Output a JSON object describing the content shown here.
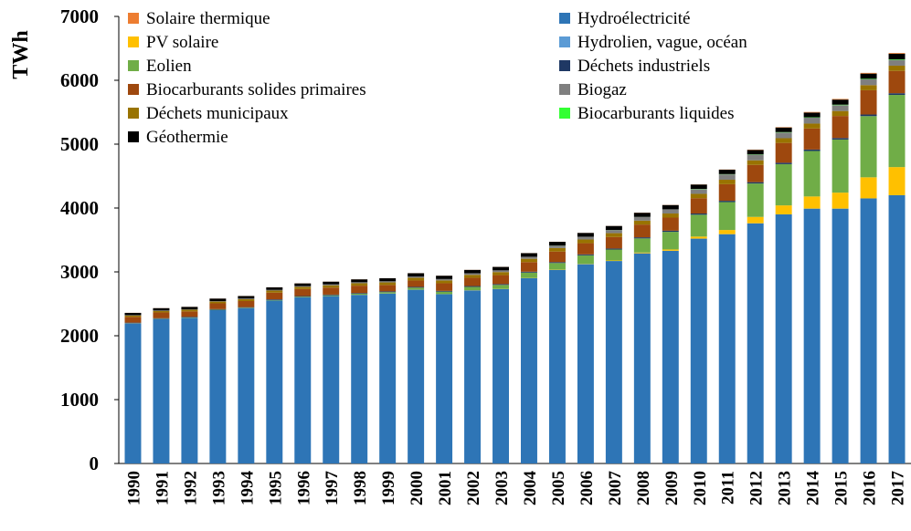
{
  "chart_data": {
    "type": "stacked_bar",
    "y_label": "TWh",
    "categories": [
      "1990",
      "1991",
      "1992",
      "1993",
      "1994",
      "1995",
      "1996",
      "1997",
      "1998",
      "1999",
      "2000",
      "2001",
      "2002",
      "2003",
      "2004",
      "2005",
      "2006",
      "2007",
      "2008",
      "2009",
      "2010",
      "2011",
      "2012",
      "2013",
      "2014",
      "2015",
      "2016",
      "2017"
    ],
    "ylim": [
      0,
      7000
    ],
    "yticks": [
      0,
      1000,
      2000,
      3000,
      4000,
      5000,
      6000,
      7000
    ],
    "series": [
      {
        "name": "Solaire thermique",
        "color": "#ed7d31",
        "values": [
          1,
          1,
          1,
          1,
          1,
          1,
          1,
          1,
          1,
          1,
          1,
          1,
          1,
          1,
          1,
          1,
          1,
          1,
          2,
          2,
          2,
          3,
          5,
          6,
          9,
          10,
          11,
          11
        ]
      },
      {
        "name": "Hydroélectricité",
        "color": "#2e75b6",
        "values": [
          2190,
          2260,
          2280,
          2400,
          2430,
          2550,
          2600,
          2620,
          2640,
          2660,
          2720,
          2650,
          2710,
          2730,
          2900,
          3030,
          3120,
          3170,
          3290,
          3330,
          3520,
          3590,
          3760,
          3900,
          3990,
          3990,
          4150,
          4200
        ]
      },
      {
        "name": "PV solaire",
        "color": "#ffc000",
        "values": [
          0,
          0,
          0,
          0,
          0,
          0,
          0,
          0,
          1,
          1,
          1,
          1,
          2,
          2,
          3,
          4,
          5,
          8,
          12,
          20,
          32,
          65,
          100,
          140,
          190,
          250,
          330,
          440
        ]
      },
      {
        "name": "Hydrolien, vague, océan",
        "color": "#5b9bd5",
        "values": [
          1,
          1,
          1,
          1,
          1,
          1,
          1,
          1,
          1,
          1,
          1,
          1,
          1,
          1,
          1,
          1,
          1,
          1,
          1,
          1,
          1,
          1,
          1,
          1,
          1,
          1,
          1,
          1
        ]
      },
      {
        "name": "Eolien",
        "color": "#70ad47",
        "values": [
          4,
          4,
          5,
          6,
          7,
          8,
          10,
          12,
          16,
          21,
          31,
          38,
          52,
          63,
          85,
          104,
          133,
          171,
          221,
          276,
          342,
          437,
          523,
          646,
          712,
          831,
          958,
          1130
        ]
      },
      {
        "name": "Déchets industriels",
        "color": "#1f3864",
        "values": [
          10,
          10,
          10,
          10,
          10,
          11,
          11,
          11,
          11,
          12,
          12,
          12,
          13,
          13,
          14,
          14,
          15,
          16,
          17,
          18,
          19,
          20,
          21,
          22,
          23,
          24,
          25,
          26
        ]
      },
      {
        "name": "Biocarburants solides primaires",
        "color": "#9e480e",
        "values": [
          90,
          90,
          85,
          90,
          95,
          105,
          110,
          110,
          115,
          100,
          100,
          120,
          130,
          140,
          150,
          165,
          175,
          180,
          200,
          205,
          240,
          260,
          270,
          310,
          330,
          345,
          380,
          350
        ]
      },
      {
        "name": "Biogaz",
        "color": "#7f7f7f",
        "values": [
          5,
          6,
          7,
          8,
          9,
          11,
          12,
          14,
          16,
          18,
          20,
          22,
          25,
          27,
          32,
          38,
          43,
          50,
          57,
          65,
          75,
          84,
          88,
          90,
          92,
          92,
          92,
          92
        ]
      },
      {
        "name": "Déchets municipaux",
        "color": "#997300",
        "values": [
          22,
          24,
          26,
          28,
          30,
          32,
          34,
          36,
          38,
          40,
          42,
          44,
          46,
          48,
          52,
          56,
          58,
          60,
          62,
          64,
          68,
          70,
          72,
          74,
          76,
          78,
          80,
          82
        ]
      },
      {
        "name": "Biocarburants liquides",
        "color": "#33ff33",
        "values": [
          0,
          0,
          0,
          0,
          0,
          0,
          0,
          0,
          0,
          0,
          0,
          0,
          0,
          0,
          0,
          1,
          1,
          1,
          1,
          1,
          3,
          4,
          5,
          6,
          6,
          7,
          7,
          8
        ]
      },
      {
        "name": "Géothermie",
        "color": "#000000",
        "values": [
          36,
          37,
          38,
          39,
          40,
          40,
          42,
          43,
          45,
          47,
          52,
          52,
          52,
          54,
          56,
          58,
          59,
          62,
          65,
          67,
          68,
          69,
          70,
          72,
          75,
          80,
          82,
          88
        ]
      }
    ]
  }
}
